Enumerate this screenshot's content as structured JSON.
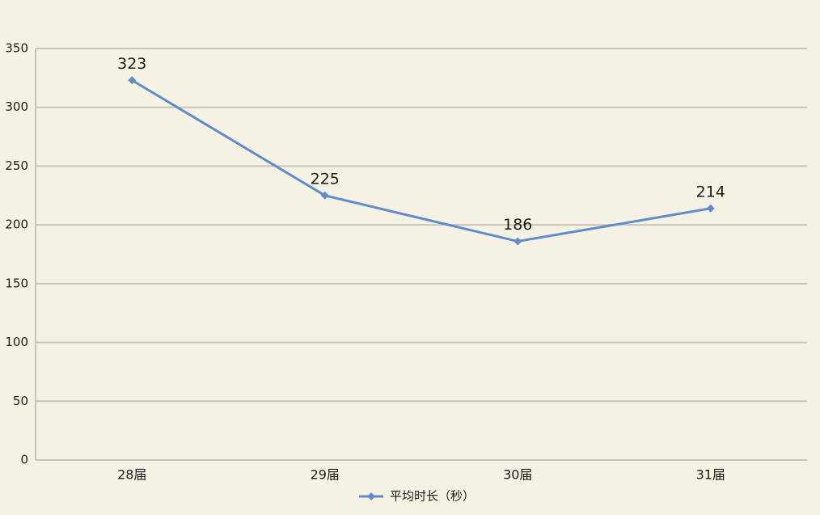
{
  "chart_data": {
    "type": "line",
    "categories": [
      "28届",
      "29届",
      "30届",
      "31届"
    ],
    "series": [
      {
        "name": "平均时长（秒）",
        "color": "#5f8ccb",
        "values": [
          323,
          225,
          186,
          214
        ]
      }
    ],
    "ylim": [
      0,
      350
    ],
    "yticks": [
      0,
      50,
      100,
      150,
      200,
      250,
      300,
      350
    ],
    "grid": true,
    "legend": "bottom",
    "data_labels": true
  }
}
